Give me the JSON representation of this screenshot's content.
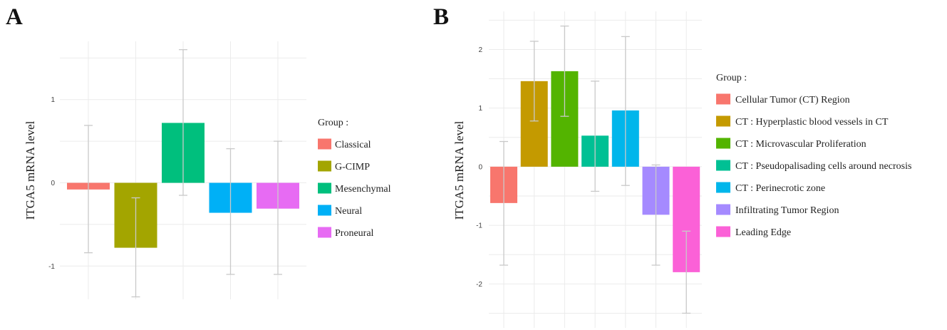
{
  "chart_data": [
    {
      "type": "bar",
      "panel_label": "A",
      "title": "",
      "xlabel": "",
      "ylabel": "ITGA5 mRNA level",
      "ylim": [
        -1.4,
        1.7
      ],
      "yticks": [
        1,
        0,
        -1
      ],
      "ytick_labels": [
        "1",
        "0",
        "-1"
      ],
      "grid": true,
      "legend_title": "Group :",
      "legend_position": "right",
      "categories": [
        "Classical",
        "G-CIMP",
        "Mesenchymal",
        "Neural",
        "Proneural"
      ],
      "values": [
        -0.08,
        -0.78,
        0.72,
        -0.36,
        -0.31
      ],
      "error_low": [
        -0.84,
        -1.37,
        -0.15,
        -1.1,
        -1.1
      ],
      "error_high": [
        0.69,
        -0.18,
        1.6,
        0.41,
        0.5
      ],
      "colors": [
        "#F8766D",
        "#A3A500",
        "#00BF7D",
        "#00B0F6",
        "#E76BF3"
      ]
    },
    {
      "type": "bar",
      "panel_label": "B",
      "title": "",
      "xlabel": "",
      "ylabel": "ITGA5 mRNA level",
      "ylim": [
        -2.75,
        2.65
      ],
      "yticks": [
        2,
        1,
        0,
        -1,
        -2
      ],
      "ytick_labels": [
        "2",
        "1",
        "0",
        "-1",
        "-2"
      ],
      "grid": true,
      "legend_title": "Group :",
      "legend_position": "right",
      "categories": [
        "Cellular Tumor (CT) Region",
        "CT : Hyperplastic blood vessels in CT",
        "CT : Microvascular Proliferation",
        "CT : Pseudopalisading cells around necrosis",
        "CT : Perinecrotic zone",
        "Infiltrating Tumor Region",
        "Leading Edge"
      ],
      "values": [
        -0.62,
        1.46,
        1.63,
        0.53,
        0.96,
        -0.82,
        -1.8
      ],
      "error_low": [
        -1.68,
        0.78,
        0.86,
        -0.42,
        -0.32,
        -1.68,
        -1.1
      ],
      "error_high": [
        0.43,
        2.14,
        2.4,
        1.46,
        2.22,
        0.03,
        -2.5
      ],
      "colors": [
        "#F8766D",
        "#C49A00",
        "#53B400",
        "#00C094",
        "#00B6EB",
        "#A58AFF",
        "#FB61D7"
      ]
    }
  ]
}
